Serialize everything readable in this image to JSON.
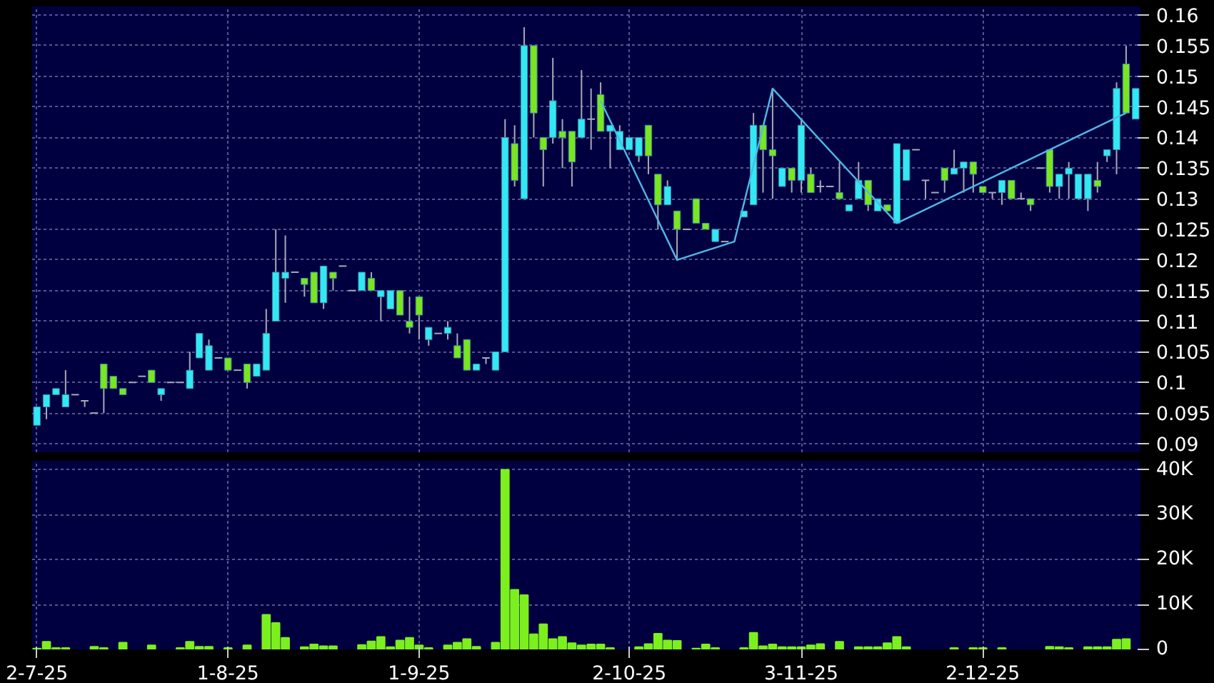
{
  "chart_data": [
    {
      "type": "candlestick",
      "categories": [
        null,
        null,
        null,
        null,
        null,
        null,
        null,
        null,
        null,
        null,
        null,
        null,
        null,
        null,
        null,
        null,
        null,
        null,
        null,
        null,
        null,
        null,
        null,
        null,
        null,
        null,
        null,
        null,
        null,
        null,
        null,
        null,
        null,
        null,
        null,
        null,
        null,
        null,
        null,
        null,
        null,
        null,
        null,
        null,
        null,
        null,
        null,
        null,
        null,
        null,
        null,
        null,
        null,
        null,
        null,
        null,
        null,
        null,
        null,
        null,
        null,
        null,
        null,
        null,
        null,
        null,
        null,
        null,
        null,
        null,
        null,
        null,
        null,
        null,
        null,
        null,
        null,
        null,
        null,
        null,
        null,
        null,
        null,
        null,
        null,
        null,
        null,
        null,
        null,
        null,
        null,
        null,
        null,
        null,
        null,
        null,
        null,
        null,
        null,
        null,
        null,
        null,
        null,
        null,
        null,
        null,
        null,
        null,
        null,
        null,
        null,
        null,
        null,
        null,
        null,
        null
      ],
      "ohlc": [
        [
          0.093,
          0.096,
          0.093,
          0.096
        ],
        [
          0.096,
          0.098,
          0.094,
          0.098
        ],
        [
          0.098,
          0.099,
          0.098,
          0.099
        ],
        [
          0.096,
          0.102,
          0.096,
          0.098
        ],
        [
          0.098,
          0.098,
          0.098,
          0.098
        ],
        [
          0.097,
          0.097,
          0.096,
          0.097
        ],
        [
          0.095,
          0.095,
          0.095,
          0.095
        ],
        [
          0.103,
          0.103,
          0.095,
          0.099
        ],
        [
          0.101,
          0.101,
          0.099,
          0.099
        ],
        [
          0.099,
          0.099,
          0.098,
          0.098
        ],
        [
          0.1,
          0.1,
          0.1,
          0.1
        ],
        [
          0.101,
          0.101,
          0.101,
          0.101
        ],
        [
          0.102,
          0.102,
          0.1,
          0.1
        ],
        [
          0.098,
          0.099,
          0.097,
          0.099
        ],
        [
          0.1,
          0.1,
          0.1,
          0.1
        ],
        [
          0.1,
          0.1,
          0.1,
          0.1
        ],
        [
          0.099,
          0.105,
          0.099,
          0.102
        ],
        [
          0.104,
          0.108,
          0.104,
          0.108
        ],
        [
          0.102,
          0.107,
          0.102,
          0.106
        ],
        [
          0.104,
          0.104,
          0.104,
          0.104
        ],
        [
          0.104,
          0.104,
          0.102,
          0.102
        ],
        [
          0.102,
          0.102,
          0.102,
          0.102
        ],
        [
          0.103,
          0.103,
          0.099,
          0.1
        ],
        [
          0.101,
          0.103,
          0.101,
          0.103
        ],
        [
          0.102,
          0.112,
          0.102,
          0.108
        ],
        [
          0.11,
          0.125,
          0.11,
          0.118
        ],
        [
          0.117,
          0.124,
          0.113,
          0.118
        ],
        [
          0.118,
          0.118,
          0.118,
          0.118
        ],
        [
          0.117,
          0.117,
          0.114,
          0.116
        ],
        [
          0.118,
          0.118,
          0.113,
          0.113
        ],
        [
          0.113,
          0.119,
          0.112,
          0.119
        ],
        [
          0.118,
          0.118,
          0.115,
          0.117
        ],
        [
          0.119,
          0.119,
          0.119,
          0.119
        ],
        [
          0.115,
          0.115,
          0.115,
          0.115
        ],
        [
          0.115,
          0.118,
          0.115,
          0.118
        ],
        [
          0.117,
          0.118,
          0.115,
          0.115
        ],
        [
          0.114,
          0.115,
          0.11,
          0.115
        ],
        [
          0.112,
          0.115,
          0.112,
          0.115
        ],
        [
          0.115,
          0.115,
          0.111,
          0.111
        ],
        [
          0.11,
          0.114,
          0.108,
          0.109
        ],
        [
          0.114,
          0.114,
          0.107,
          0.111
        ],
        [
          0.107,
          0.109,
          0.106,
          0.109
        ],
        [
          0.108,
          0.108,
          0.108,
          0.108
        ],
        [
          0.108,
          0.11,
          0.107,
          0.109
        ],
        [
          0.106,
          0.108,
          0.104,
          0.104
        ],
        [
          0.107,
          0.107,
          0.102,
          0.102
        ],
        [
          0.102,
          0.103,
          0.102,
          0.103
        ],
        [
          0.104,
          0.104,
          0.103,
          0.104
        ],
        [
          0.102,
          0.105,
          0.102,
          0.105
        ],
        [
          0.105,
          0.143,
          0.105,
          0.14
        ],
        [
          0.139,
          0.142,
          0.132,
          0.133
        ],
        [
          0.13,
          0.158,
          0.13,
          0.155
        ],
        [
          0.155,
          0.155,
          0.14,
          0.144
        ],
        [
          0.14,
          0.14,
          0.132,
          0.138
        ],
        [
          0.14,
          0.153,
          0.139,
          0.146
        ],
        [
          0.141,
          0.143,
          0.135,
          0.14
        ],
        [
          0.141,
          0.141,
          0.132,
          0.136
        ],
        [
          0.14,
          0.151,
          0.14,
          0.143
        ],
        [
          0.143,
          0.148,
          0.138,
          0.143
        ],
        [
          0.147,
          0.149,
          0.141,
          0.141
        ],
        [
          0.141,
          0.142,
          0.135,
          0.142
        ],
        [
          0.138,
          0.142,
          0.138,
          0.141
        ],
        [
          0.138,
          0.14,
          0.138,
          0.14
        ],
        [
          0.137,
          0.14,
          0.136,
          0.14
        ],
        [
          0.142,
          0.142,
          0.134,
          0.137
        ],
        [
          0.134,
          0.134,
          0.125,
          0.129
        ],
        [
          0.129,
          0.133,
          0.129,
          0.132
        ],
        [
          0.128,
          0.128,
          0.12,
          0.125
        ],
        [
          0.125,
          0.125,
          0.125,
          0.125
        ],
        [
          0.13,
          0.13,
          0.126,
          0.126
        ],
        [
          0.126,
          0.126,
          0.125,
          0.125
        ],
        [
          0.123,
          0.125,
          0.123,
          0.125
        ],
        [
          0.123,
          0.123,
          0.123,
          0.123
        ],
        null,
        [
          0.127,
          0.128,
          0.127,
          0.128
        ],
        [
          0.129,
          0.144,
          0.129,
          0.142
        ],
        [
          0.142,
          0.142,
          0.131,
          0.138
        ],
        [
          0.138,
          0.148,
          0.13,
          0.137
        ],
        [
          0.132,
          0.135,
          0.132,
          0.135
        ],
        [
          0.135,
          0.135,
          0.131,
          0.133
        ],
        [
          0.133,
          0.143,
          0.131,
          0.142
        ],
        [
          0.134,
          0.135,
          0.131,
          0.131
        ],
        [
          0.132,
          0.133,
          0.131,
          0.132
        ],
        [
          0.132,
          0.132,
          0.132,
          0.132
        ],
        [
          0.131,
          0.136,
          0.13,
          0.13
        ],
        [
          0.128,
          0.129,
          0.128,
          0.129
        ],
        [
          0.13,
          0.136,
          0.13,
          0.133
        ],
        [
          0.133,
          0.133,
          0.128,
          0.129
        ],
        [
          0.128,
          0.13,
          0.128,
          0.13
        ],
        [
          0.129,
          0.129,
          0.128,
          0.128
        ],
        [
          0.126,
          0.139,
          0.126,
          0.139
        ],
        [
          0.133,
          0.138,
          0.133,
          0.138
        ],
        [
          0.138,
          0.138,
          0.138,
          0.138
        ],
        [
          0.133,
          0.133,
          0.13,
          0.133
        ],
        [
          0.131,
          0.131,
          0.131,
          0.131
        ],
        [
          0.135,
          0.135,
          0.131,
          0.133
        ],
        [
          0.134,
          0.138,
          0.134,
          0.135
        ],
        [
          0.135,
          0.136,
          0.131,
          0.136
        ],
        [
          0.136,
          0.136,
          0.131,
          0.134
        ],
        [
          0.132,
          0.132,
          0.131,
          0.131
        ],
        [
          0.131,
          0.131,
          0.13,
          0.131
        ],
        [
          0.131,
          0.133,
          0.129,
          0.133
        ],
        [
          0.133,
          0.133,
          0.13,
          0.13
        ],
        [
          0.13,
          0.131,
          0.13,
          0.13
        ],
        [
          0.13,
          0.13,
          0.128,
          0.129
        ],
        [
          0.135,
          0.135,
          0.135,
          0.135
        ],
        [
          0.138,
          0.138,
          0.131,
          0.132
        ],
        [
          0.132,
          0.134,
          0.13,
          0.134
        ],
        [
          0.134,
          0.136,
          0.13,
          0.135
        ],
        [
          0.13,
          0.134,
          0.13,
          0.134
        ],
        [
          0.13,
          0.134,
          0.128,
          0.134
        ],
        [
          0.133,
          0.136,
          0.131,
          0.132
        ],
        [
          0.137,
          0.138,
          0.136,
          0.138
        ],
        [
          0.138,
          0.149,
          0.134,
          0.148
        ],
        [
          0.152,
          0.155,
          0.144,
          0.144
        ],
        [
          0.143,
          0.148,
          0.143,
          0.148
        ]
      ],
      "series": [
        {
          "type": "line",
          "color": "#4fb8e8",
          "values": [
            null,
            null,
            null,
            null,
            null,
            null,
            null,
            null,
            null,
            null,
            null,
            null,
            null,
            null,
            null,
            null,
            null,
            null,
            null,
            null,
            null,
            null,
            null,
            null,
            null,
            null,
            null,
            null,
            null,
            null,
            null,
            null,
            null,
            null,
            null,
            null,
            null,
            null,
            null,
            null,
            null,
            null,
            null,
            null,
            null,
            null,
            null,
            null,
            null,
            null,
            null,
            null,
            null,
            null,
            null,
            null,
            null,
            null,
            null,
            0.146,
            null,
            null,
            null,
            null,
            null,
            null,
            null,
            0.12,
            null,
            null,
            null,
            null,
            null,
            0.123,
            null,
            null,
            null,
            0.148,
            null,
            null,
            null,
            null,
            null,
            null,
            null,
            null,
            null,
            null,
            null,
            null,
            0.126,
            null,
            null,
            null,
            null,
            null,
            null,
            null,
            null,
            null,
            null,
            null,
            null,
            null,
            null,
            null,
            null,
            null,
            null,
            null,
            null,
            null,
            null,
            null,
            0.144,
            null
          ]
        }
      ],
      "ylim": [
        0.0886,
        0.1614
      ],
      "yticks": [
        0.09,
        0.095,
        0.1,
        0.105,
        0.11,
        0.115,
        0.12,
        0.125,
        0.13,
        0.135,
        0.14,
        0.145,
        0.15,
        0.155,
        0.16
      ],
      "grid": true,
      "tick_labels": "y"
    },
    {
      "type": "bar",
      "color": "#7cf01e",
      "categories": [
        "2-7-25",
        null,
        null,
        null,
        null,
        null,
        null,
        null,
        null,
        null,
        null,
        null,
        null,
        null,
        null,
        null,
        null,
        null,
        null,
        null,
        "1-8-25",
        null,
        null,
        null,
        null,
        null,
        null,
        null,
        null,
        null,
        null,
        null,
        null,
        null,
        null,
        null,
        null,
        null,
        null,
        null,
        "1-9-25",
        null,
        null,
        null,
        null,
        null,
        null,
        null,
        null,
        null,
        null,
        null,
        null,
        null,
        null,
        null,
        null,
        null,
        null,
        null,
        null,
        null,
        "2-10-25",
        null,
        null,
        null,
        null,
        null,
        null,
        null,
        null,
        null,
        null,
        null,
        null,
        null,
        null,
        null,
        null,
        null,
        "3-11-25",
        null,
        null,
        null,
        null,
        null,
        null,
        null,
        null,
        null,
        null,
        null,
        null,
        null,
        null,
        null,
        null,
        null,
        null,
        "2-12-25",
        null,
        null,
        null,
        null,
        null,
        null,
        null,
        null,
        null,
        null,
        null,
        null,
        null,
        null,
        null,
        null
      ],
      "values": [
        200,
        1700,
        300,
        300,
        null,
        null,
        600,
        300,
        null,
        1500,
        null,
        null,
        900,
        null,
        null,
        300,
        1700,
        600,
        600,
        null,
        300,
        null,
        900,
        null,
        7700,
        5900,
        2600,
        null,
        500,
        1100,
        700,
        700,
        null,
        null,
        1000,
        1800,
        2800,
        500,
        2000,
        2600,
        900,
        300,
        null,
        900,
        1500,
        2300,
        600,
        null,
        1500,
        40000,
        13300,
        12100,
        3400,
        5600,
        2300,
        2800,
        1400,
        900,
        1100,
        1100,
        300,
        null,
        null,
        500,
        1200,
        3500,
        2000,
        1900,
        null,
        200,
        1100,
        300,
        null,
        null,
        300,
        3700,
        700,
        1100,
        500,
        500,
        500,
        900,
        1200,
        null,
        1700,
        null,
        500,
        500,
        500,
        1400,
        2800,
        500,
        null,
        null,
        null,
        null,
        300,
        null,
        300,
        300,
        null,
        300,
        null,
        null,
        null,
        null,
        600,
        500,
        300,
        null,
        500,
        500,
        500,
        2200,
        2300,
        null
      ],
      "ylim": [
        0,
        42000
      ],
      "yticks": [
        0,
        {
          "value": 10000,
          "label": "10K"
        },
        {
          "value": 20000,
          "label": "20K"
        },
        {
          "value": 30000,
          "label": "30K"
        },
        {
          "value": 40000,
          "label": "40K"
        }
      ],
      "grid": true
    }
  ]
}
